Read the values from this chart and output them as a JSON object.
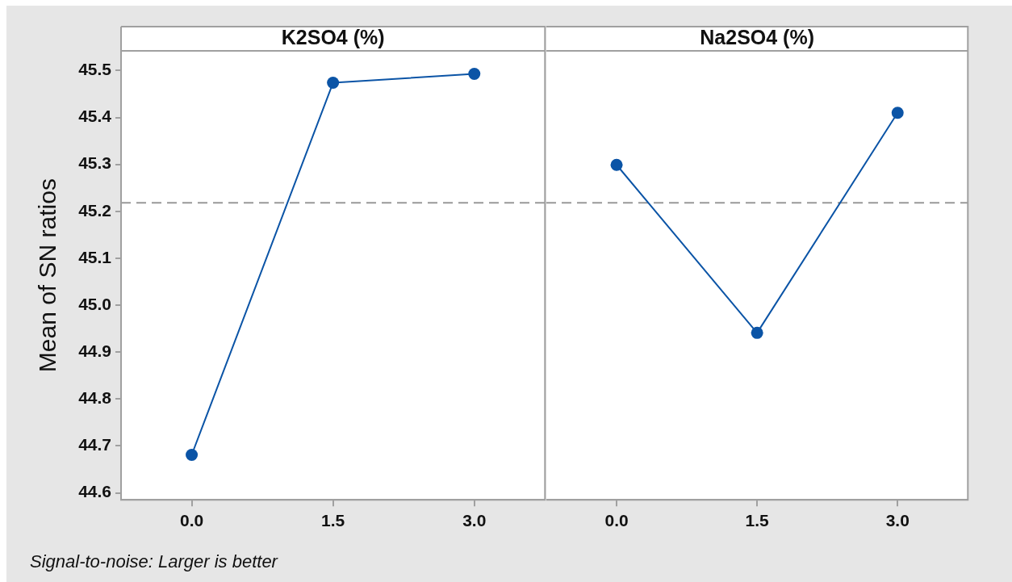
{
  "chart_data": [
    {
      "type": "line",
      "title": "K2SO4 (%)",
      "ylabel": "Mean of SN ratios",
      "categories": [
        "0.0",
        "1.5",
        "3.0"
      ],
      "values": [
        44.681,
        45.474,
        45.493
      ],
      "color": "#0b54a6",
      "marker": "circle",
      "ylim": [
        44.585,
        45.542
      ],
      "yticks": [
        44.6,
        44.7,
        44.8,
        44.9,
        {
          "value": 45,
          "label": "45.0"
        },
        45.1,
        45.2,
        45.3,
        45.4,
        45.5
      ],
      "ref_lines": [
        {
          "axis": "y",
          "value": 45.218,
          "color": "#999999",
          "line_style": "dashed"
        }
      ],
      "annotations": [
        "Signal-to-noise: Larger is better"
      ]
    },
    {
      "type": "line",
      "title": "Na2SO4 (%)",
      "categories": [
        "0.0",
        "1.5",
        "3.0"
      ],
      "values": [
        45.299,
        44.941,
        45.41
      ],
      "color": "#0b54a6",
      "marker": "circle",
      "ylim": [
        44.585,
        45.542
      ],
      "tick_labels": "x",
      "ref_lines": [
        {
          "axis": "y",
          "value": 45.218,
          "color": "#999999",
          "line_style": "dashed"
        }
      ]
    }
  ]
}
